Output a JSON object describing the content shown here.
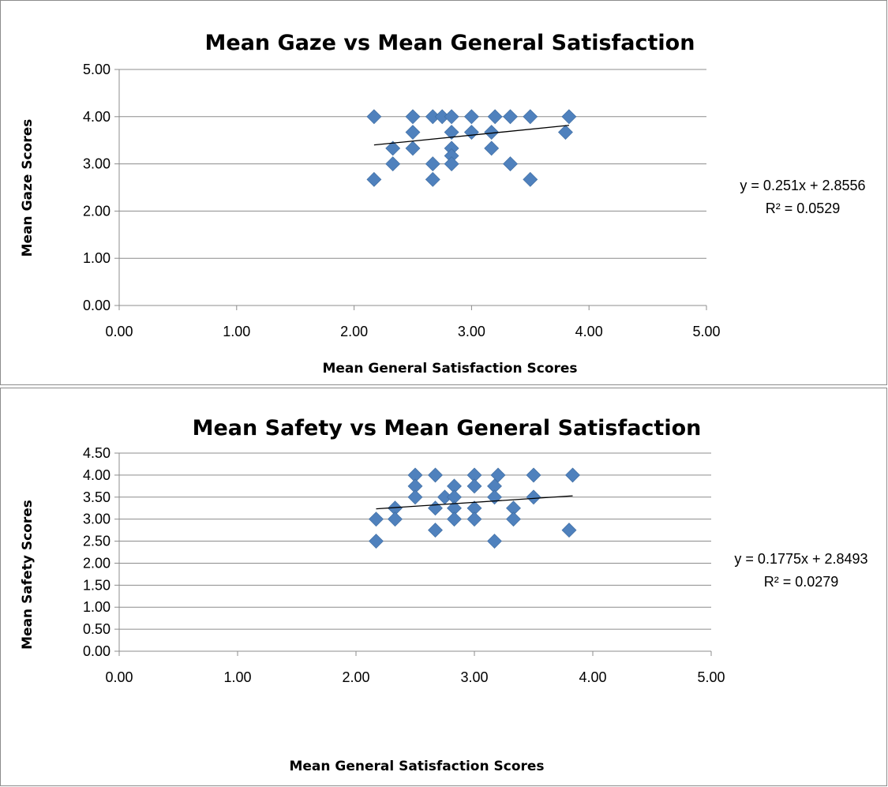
{
  "chart_data": [
    {
      "type": "scatter",
      "title": "Mean Gaze vs Mean General Satisfaction",
      "xlabel": "Mean General Satisfaction Scores",
      "ylabel": "Mean Gaze Scores",
      "xlim": [
        0,
        5
      ],
      "ylim": [
        0,
        5
      ],
      "xticks": [
        "0.00",
        "1.00",
        "2.00",
        "3.00",
        "4.00",
        "5.00"
      ],
      "yticks": [
        "0.00",
        "1.00",
        "2.00",
        "3.00",
        "4.00",
        "5.00"
      ],
      "grid": true,
      "marker": "diamond",
      "marker_color": "#4f81bd",
      "trendline": {
        "slope": 0.251,
        "intercept": 2.8556,
        "x_range": [
          2.17,
          3.83
        ]
      },
      "equation": "y = 0.251x + 2.8556",
      "r_squared": "R² = 0.0529",
      "points": [
        {
          "x": 2.17,
          "y": 4.0
        },
        {
          "x": 2.17,
          "y": 2.67
        },
        {
          "x": 2.33,
          "y": 3.33
        },
        {
          "x": 2.33,
          "y": 3.0
        },
        {
          "x": 2.5,
          "y": 4.0
        },
        {
          "x": 2.5,
          "y": 3.67
        },
        {
          "x": 2.5,
          "y": 3.33
        },
        {
          "x": 2.67,
          "y": 4.0
        },
        {
          "x": 2.67,
          "y": 3.0
        },
        {
          "x": 2.67,
          "y": 2.67
        },
        {
          "x": 2.75,
          "y": 4.0
        },
        {
          "x": 2.83,
          "y": 4.0
        },
        {
          "x": 2.83,
          "y": 3.67
        },
        {
          "x": 2.83,
          "y": 3.33
        },
        {
          "x": 2.83,
          "y": 3.17
        },
        {
          "x": 2.83,
          "y": 3.0
        },
        {
          "x": 3.0,
          "y": 4.0
        },
        {
          "x": 3.0,
          "y": 3.67
        },
        {
          "x": 3.17,
          "y": 3.67
        },
        {
          "x": 3.17,
          "y": 3.33
        },
        {
          "x": 3.2,
          "y": 4.0
        },
        {
          "x": 3.33,
          "y": 4.0
        },
        {
          "x": 3.33,
          "y": 3.0
        },
        {
          "x": 3.5,
          "y": 4.0
        },
        {
          "x": 3.5,
          "y": 2.67
        },
        {
          "x": 3.8,
          "y": 3.67
        },
        {
          "x": 3.83,
          "y": 4.0
        }
      ]
    },
    {
      "type": "scatter",
      "title": "Mean Safety vs Mean General Satisfaction",
      "xlabel": "Mean General Satisfaction Scores",
      "ylabel": "Mean Safety Scores",
      "xlim": [
        0,
        5
      ],
      "ylim": [
        0,
        4.5
      ],
      "xticks": [
        "0.00",
        "1.00",
        "2.00",
        "3.00",
        "4.00",
        "5.00"
      ],
      "yticks": [
        "0.00",
        "0.50",
        "1.00",
        "1.50",
        "2.00",
        "2.50",
        "3.00",
        "3.50",
        "4.00",
        "4.50"
      ],
      "grid": true,
      "marker": "diamond",
      "marker_color": "#4f81bd",
      "trendline": {
        "slope": 0.1775,
        "intercept": 2.8493,
        "x_range": [
          2.17,
          3.83
        ]
      },
      "equation": "y = 0.1775x + 2.8493",
      "r_squared": "R² = 0.0279",
      "points": [
        {
          "x": 2.17,
          "y": 3.0
        },
        {
          "x": 2.17,
          "y": 2.5
        },
        {
          "x": 2.33,
          "y": 3.25
        },
        {
          "x": 2.33,
          "y": 3.0
        },
        {
          "x": 2.5,
          "y": 4.0
        },
        {
          "x": 2.5,
          "y": 3.75
        },
        {
          "x": 2.5,
          "y": 3.5
        },
        {
          "x": 2.67,
          "y": 4.0
        },
        {
          "x": 2.67,
          "y": 3.25
        },
        {
          "x": 2.67,
          "y": 2.75
        },
        {
          "x": 2.75,
          "y": 3.5
        },
        {
          "x": 2.83,
          "y": 3.75
        },
        {
          "x": 2.83,
          "y": 3.5
        },
        {
          "x": 2.83,
          "y": 3.25
        },
        {
          "x": 2.83,
          "y": 3.0
        },
        {
          "x": 3.0,
          "y": 4.0
        },
        {
          "x": 3.0,
          "y": 3.75
        },
        {
          "x": 3.0,
          "y": 3.25
        },
        {
          "x": 3.0,
          "y": 3.0
        },
        {
          "x": 3.17,
          "y": 3.75
        },
        {
          "x": 3.17,
          "y": 3.5
        },
        {
          "x": 3.17,
          "y": 2.5
        },
        {
          "x": 3.2,
          "y": 4.0
        },
        {
          "x": 3.33,
          "y": 3.25
        },
        {
          "x": 3.33,
          "y": 3.0
        },
        {
          "x": 3.5,
          "y": 4.0
        },
        {
          "x": 3.5,
          "y": 3.5
        },
        {
          "x": 3.8,
          "y": 2.75
        },
        {
          "x": 3.83,
          "y": 4.0
        }
      ]
    }
  ]
}
